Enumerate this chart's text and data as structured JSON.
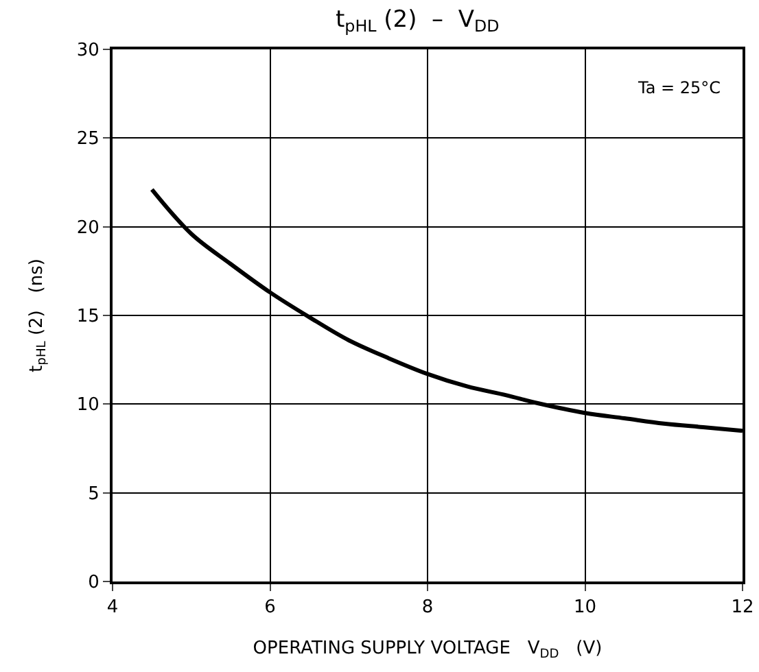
{
  "chart_data": {
    "type": "line",
    "title": "t$_{pHL}$ (2)  –  V$_{DD}$",
    "xlabel": "OPERATING SUPPLY VOLTAGE   V$_{DD}$   (V)",
    "ylabel": "t$_{pHL}$ (2)   (ns)",
    "annotations": [
      "Ta = 25°C"
    ],
    "x": [
      4.5,
      5,
      5.5,
      6,
      6.5,
      7,
      7.5,
      8,
      8.5,
      9,
      9.4,
      10,
      10.5,
      11,
      11.5,
      12
    ],
    "series": [
      {
        "color": "#000000",
        "values": [
          22.1,
          19.6,
          17.9,
          16.3,
          14.9,
          13.6,
          12.6,
          11.7,
          11.0,
          10.5,
          10.05,
          9.5,
          9.2,
          8.9,
          8.7,
          8.5
        ]
      }
    ],
    "xlim": [
      4,
      12
    ],
    "xticks": [
      4,
      6,
      8,
      10,
      12
    ],
    "ylim": [
      0,
      30
    ],
    "yticks": [
      0,
      5,
      10,
      15,
      20,
      25,
      30
    ],
    "grid": true,
    "marker": "none",
    "line_style": "solid"
  }
}
